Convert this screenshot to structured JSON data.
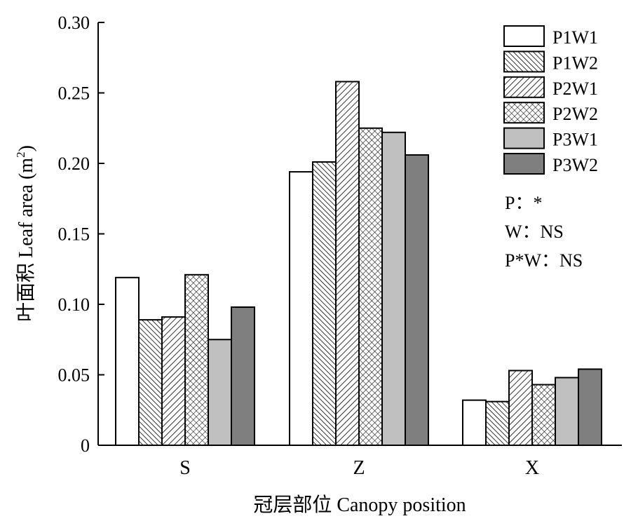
{
  "chart_data": {
    "type": "bar",
    "xlabel": "冠层部位 Canopy position",
    "ylabel": "叶面积 Leaf area (m²)",
    "ylabel_main": "叶面积 Leaf area (m",
    "ylabel_sup": "2",
    "ylabel_close": ")",
    "ylim": [
      0,
      0.3
    ],
    "yticks": [
      0,
      0.05,
      0.1,
      0.15,
      0.2,
      0.25,
      0.3
    ],
    "ytick_labels": [
      "0",
      "0.05",
      "0.10",
      "0.15",
      "0.20",
      "0.25",
      "0.30"
    ],
    "categories": [
      "S",
      "Z",
      "X"
    ],
    "series": [
      {
        "name": "P1W1",
        "pattern": "white",
        "values": [
          0.119,
          0.194,
          0.032
        ]
      },
      {
        "name": "P1W2",
        "pattern": "diag-fine",
        "values": [
          0.089,
          0.201,
          0.031
        ]
      },
      {
        "name": "P2W1",
        "pattern": "diag-coarse",
        "values": [
          0.091,
          0.258,
          0.053
        ]
      },
      {
        "name": "P2W2",
        "pattern": "crosshatch",
        "values": [
          0.121,
          0.225,
          0.043
        ]
      },
      {
        "name": "P3W1",
        "pattern": "light-gray",
        "values": [
          0.075,
          0.222,
          0.048
        ]
      },
      {
        "name": "P3W2",
        "pattern": "dark-gray",
        "values": [
          0.098,
          0.206,
          0.054
        ]
      }
    ],
    "legend_position": "top-right",
    "annotations": [
      "P：*",
      "W：NS",
      "P*W：NS"
    ],
    "grid": false
  }
}
